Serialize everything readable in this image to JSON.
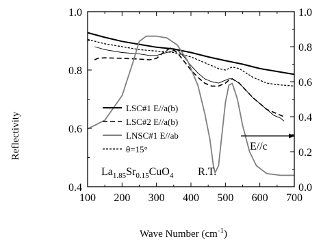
{
  "chart_data": {
    "type": "line",
    "xlabel": "Wave Number (cm",
    "xlabel_sup": "-1",
    "xlabel_tail": ")",
    "ylabel": "Reflectivity",
    "xlim": [
      100,
      700
    ],
    "ylim": [
      0.4,
      1.0
    ],
    "y2lim": [
      0.0,
      1.0
    ],
    "x_ticks": [
      "100",
      "200",
      "300",
      "400",
      "500",
      "600",
      "700"
    ],
    "y_ticks": [
      "0.4",
      "0.6",
      "0.8",
      "1.0"
    ],
    "y2_ticks": [
      "0.0",
      "0.2",
      "0.4",
      "0.6",
      "0.8",
      "1.0"
    ],
    "grid": false,
    "legend_position": "lower-left",
    "series": [
      {
        "name": "LSC#1 E//a(b)",
        "axis": "left",
        "style": "solid-thick",
        "color": "#000000",
        "points": [
          [
            100,
            0.928
          ],
          [
            150,
            0.912
          ],
          [
            200,
            0.898
          ],
          [
            250,
            0.888
          ],
          [
            300,
            0.878
          ],
          [
            350,
            0.872
          ],
          [
            400,
            0.86
          ],
          [
            450,
            0.845
          ],
          [
            500,
            0.832
          ],
          [
            550,
            0.82
          ],
          [
            600,
            0.805
          ],
          [
            650,
            0.795
          ],
          [
            700,
            0.785
          ]
        ]
      },
      {
        "name": "LSC#2 E//a(b)",
        "axis": "left",
        "style": "dashed",
        "color": "#000000",
        "points": [
          [
            120,
            0.835
          ],
          [
            130,
            0.84
          ],
          [
            150,
            0.842
          ],
          [
            200,
            0.84
          ],
          [
            240,
            0.838
          ],
          [
            280,
            0.835
          ],
          [
            300,
            0.84
          ],
          [
            320,
            0.86
          ],
          [
            340,
            0.875
          ],
          [
            360,
            0.86
          ],
          [
            380,
            0.83
          ],
          [
            400,
            0.8
          ],
          [
            420,
            0.775
          ],
          [
            440,
            0.755
          ],
          [
            460,
            0.745
          ],
          [
            480,
            0.745
          ],
          [
            500,
            0.755
          ],
          [
            510,
            0.765
          ],
          [
            520,
            0.77
          ],
          [
            540,
            0.755
          ],
          [
            560,
            0.73
          ],
          [
            580,
            0.705
          ],
          [
            600,
            0.685
          ],
          [
            620,
            0.665
          ],
          [
            640,
            0.655
          ],
          [
            660,
            0.645
          ],
          [
            670,
            0.64
          ]
        ]
      },
      {
        "name": "LNSC#1 E//ab",
        "axis": "left",
        "style": "solid-thin",
        "color": "#000000",
        "points": [
          [
            120,
            0.88
          ],
          [
            150,
            0.87
          ],
          [
            200,
            0.86
          ],
          [
            250,
            0.855
          ],
          [
            280,
            0.85
          ],
          [
            300,
            0.85
          ],
          [
            330,
            0.86
          ],
          [
            360,
            0.87
          ],
          [
            380,
            0.845
          ],
          [
            400,
            0.815
          ],
          [
            420,
            0.79
          ],
          [
            440,
            0.77
          ],
          [
            460,
            0.76
          ],
          [
            480,
            0.755
          ],
          [
            500,
            0.765
          ],
          [
            510,
            0.77
          ],
          [
            520,
            0.77
          ],
          [
            540,
            0.755
          ],
          [
            560,
            0.73
          ],
          [
            580,
            0.705
          ],
          [
            600,
            0.685
          ],
          [
            620,
            0.665
          ],
          [
            640,
            0.645
          ],
          [
            660,
            0.635
          ],
          [
            670,
            0.625
          ]
        ]
      },
      {
        "name": "θ=15°",
        "axis": "left",
        "style": "dotted",
        "color": "#000000",
        "points": [
          [
            100,
            0.905
          ],
          [
            150,
            0.89
          ],
          [
            200,
            0.88
          ],
          [
            250,
            0.87
          ],
          [
            300,
            0.865
          ],
          [
            350,
            0.86
          ],
          [
            400,
            0.845
          ],
          [
            450,
            0.82
          ],
          [
            480,
            0.805
          ],
          [
            500,
            0.8
          ],
          [
            520,
            0.81
          ],
          [
            540,
            0.805
          ],
          [
            560,
            0.79
          ],
          [
            580,
            0.775
          ],
          [
            600,
            0.765
          ],
          [
            620,
            0.755
          ],
          [
            650,
            0.75
          ],
          [
            700,
            0.745
          ]
        ]
      },
      {
        "name": "E//c",
        "axis": "right",
        "style": "solid",
        "color": "#808080",
        "points": [
          [
            100,
            0.33
          ],
          [
            150,
            0.38
          ],
          [
            200,
            0.52
          ],
          [
            230,
            0.7
          ],
          [
            250,
            0.83
          ],
          [
            270,
            0.86
          ],
          [
            300,
            0.86
          ],
          [
            330,
            0.85
          ],
          [
            360,
            0.81
          ],
          [
            390,
            0.72
          ],
          [
            420,
            0.58
          ],
          [
            440,
            0.42
          ],
          [
            455,
            0.27
          ],
          [
            465,
            0.12
          ],
          [
            470,
            0.08
          ],
          [
            480,
            0.12
          ],
          [
            490,
            0.3
          ],
          [
            500,
            0.48
          ],
          [
            510,
            0.58
          ],
          [
            520,
            0.59
          ],
          [
            535,
            0.5
          ],
          [
            550,
            0.35
          ],
          [
            570,
            0.2
          ],
          [
            590,
            0.12
          ],
          [
            620,
            0.075
          ],
          [
            660,
            0.065
          ],
          [
            700,
            0.065
          ]
        ]
      }
    ],
    "annotations": {
      "formula": [
        {
          "text": "La",
          "sub": false
        },
        {
          "text": "1.85",
          "sub": true
        },
        {
          "text": "Sr",
          "sub": false
        },
        {
          "text": "0.15",
          "sub": true
        },
        {
          "text": "CuO",
          "sub": false
        },
        {
          "text": "4",
          "sub": true
        }
      ],
      "temperature": "R.T.",
      "ec_label": "E//c"
    }
  }
}
